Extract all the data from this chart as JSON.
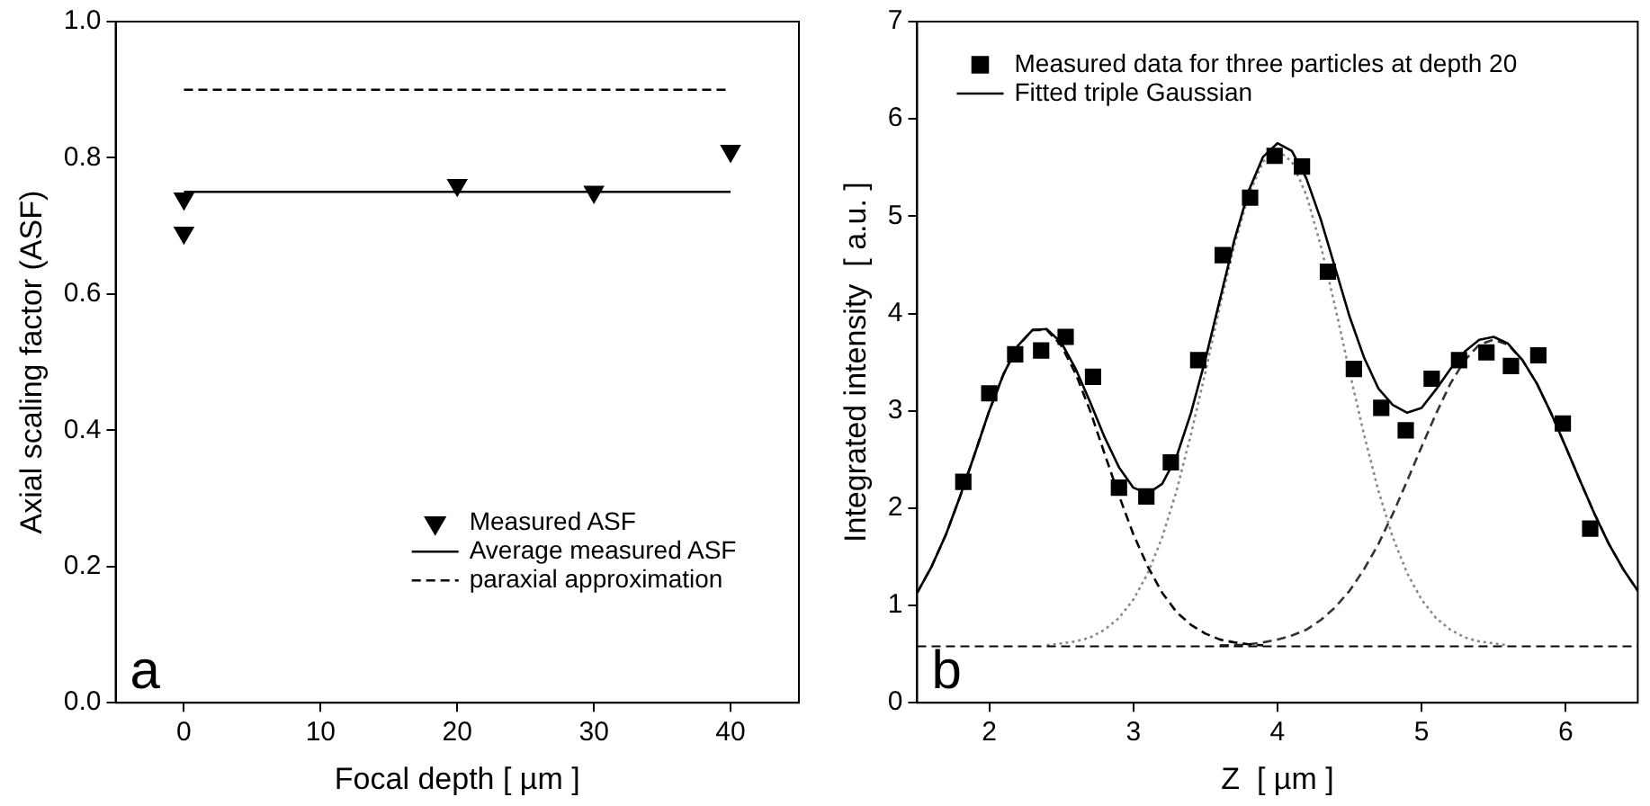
{
  "chart_data": [
    {
      "type": "scatter",
      "xlabel": "Focal depth [ µm ]",
      "ylabel": "Axial scaling factor (ASF)",
      "xlim": [
        -5,
        45
      ],
      "xticks": [
        0,
        10,
        20,
        30,
        40
      ],
      "ylim": [
        0,
        1
      ],
      "yticks": [
        {
          "value": 0,
          "label": "0.0"
        },
        {
          "value": 0.2,
          "label": "0.2"
        },
        {
          "value": 0.4,
          "label": "0.4"
        },
        {
          "value": 0.6,
          "label": "0.6"
        },
        {
          "value": 0.8,
          "label": "0.8"
        },
        {
          "value": 1,
          "label": "1.0"
        }
      ],
      "legend": "bottom right",
      "annotations": [
        "a"
      ],
      "series": [
        {
          "name": "Measured ASF",
          "type": "scatter",
          "marker": "triangle",
          "color": "#000000",
          "x": [
            0,
            0,
            20,
            30,
            40
          ],
          "values": [
            0.74,
            0.69,
            0.76,
            0.75,
            0.81
          ]
        },
        {
          "name": "Average measured ASF",
          "type": "line",
          "marker": "none",
          "line_style": "solid",
          "color": "#000000",
          "x": [
            0,
            40
          ],
          "values": [
            0.75,
            0.75
          ]
        },
        {
          "name": "paraxial approximation",
          "type": "line",
          "marker": "none",
          "line_style": "dashed",
          "color": "#000000",
          "x": [
            0,
            40
          ],
          "values": [
            0.9,
            0.9
          ]
        }
      ]
    },
    {
      "type": "scatter",
      "xlabel": "Z  [ µm ]",
      "ylabel": "Integrated intensity  [ a.u. ]",
      "xlim": [
        1.5,
        6.5
      ],
      "xticks": [
        2,
        3,
        4,
        5,
        6
      ],
      "ylim": [
        0,
        7
      ],
      "yticks": [
        0,
        1,
        2,
        3,
        4,
        5,
        6,
        7
      ],
      "legend": "top left",
      "annotations": [
        "b"
      ],
      "ref_lines": [
        {
          "axis": "y",
          "value": 0.58,
          "line_style": "dashed",
          "color": "#000000"
        }
      ],
      "series": [
        {
          "name": "Measured data for three particles at depth 20",
          "type": "scatter",
          "marker": "square",
          "color": "#000000",
          "x": [
            1.82,
            2.0,
            2.18,
            2.36,
            2.53,
            2.72,
            2.9,
            3.09,
            3.26,
            3.45,
            3.62,
            3.81,
            3.98,
            4.17,
            4.35,
            4.53,
            4.72,
            4.89,
            5.07,
            5.26,
            5.45,
            5.62,
            5.81,
            5.98,
            6.17
          ],
          "values": [
            2.27,
            3.18,
            3.58,
            3.62,
            3.76,
            3.35,
            2.21,
            2.12,
            2.47,
            3.52,
            4.6,
            5.19,
            5.62,
            5.51,
            4.43,
            3.43,
            3.03,
            2.8,
            3.33,
            3.52,
            3.6,
            3.46,
            3.57,
            2.87,
            1.79
          ]
        },
        {
          "name": "Fitted triple Gaussian",
          "type": "line",
          "marker": "none",
          "line_style": "solid",
          "color": "#000000",
          "x": [
            1.5,
            1.6,
            1.7,
            1.8,
            1.9,
            2.0,
            2.1,
            2.2,
            2.3,
            2.4,
            2.5,
            2.6,
            2.7,
            2.8,
            2.9,
            3.0,
            3.1,
            3.2,
            3.3,
            3.4,
            3.5,
            3.6,
            3.7,
            3.8,
            3.9,
            4.0,
            4.1,
            4.2,
            4.3,
            4.4,
            4.5,
            4.6,
            4.7,
            4.8,
            4.9,
            5.0,
            5.1,
            5.2,
            5.3,
            5.4,
            5.5,
            5.6,
            5.7,
            5.8,
            5.9,
            6.0,
            6.1,
            6.2,
            6.3,
            6.4,
            6.5
          ],
          "values": [
            1.13,
            1.4,
            1.73,
            2.13,
            2.56,
            3.0,
            3.38,
            3.67,
            3.83,
            3.84,
            3.7,
            3.43,
            3.09,
            2.73,
            2.42,
            2.21,
            2.15,
            2.25,
            2.53,
            2.98,
            3.53,
            4.14,
            4.75,
            5.26,
            5.61,
            5.75,
            5.67,
            5.39,
            4.97,
            4.47,
            3.97,
            3.55,
            3.23,
            3.06,
            2.98,
            3.03,
            3.22,
            3.43,
            3.61,
            3.73,
            3.76,
            3.69,
            3.52,
            3.28,
            2.97,
            2.63,
            2.28,
            1.94,
            1.63,
            1.37,
            1.15
          ]
        },
        {
          "type": "line",
          "marker": "none",
          "line_style": "dashed",
          "color": "#000000",
          "x": [
            1.5,
            1.6,
            1.7,
            1.8,
            1.9,
            2.0,
            2.1,
            2.2,
            2.3,
            2.4,
            2.5,
            2.6,
            2.7,
            2.8,
            2.9,
            3.0,
            3.1,
            3.2,
            3.3,
            3.4,
            3.5,
            3.6,
            3.7,
            3.8,
            3.9
          ],
          "values": [
            1.13,
            1.4,
            1.73,
            2.13,
            2.56,
            3.0,
            3.38,
            3.67,
            3.83,
            3.83,
            3.67,
            3.38,
            3.0,
            2.56,
            2.13,
            1.73,
            1.4,
            1.13,
            0.93,
            0.8,
            0.71,
            0.65,
            0.62,
            0.6,
            0.59
          ]
        },
        {
          "type": "line",
          "marker": "none",
          "line_style": "dotted",
          "color": "#888888",
          "x": [
            2.4,
            2.5,
            2.6,
            2.7,
            2.8,
            2.9,
            3.0,
            3.1,
            3.2,
            3.3,
            3.4,
            3.5,
            3.6,
            3.7,
            3.8,
            3.9,
            4.0,
            4.1,
            4.2,
            4.3,
            4.4,
            4.5,
            4.6,
            4.7,
            4.8,
            4.9,
            5.0,
            5.1,
            5.2,
            5.3,
            5.4,
            5.5,
            5.6
          ],
          "values": [
            0.59,
            0.61,
            0.63,
            0.67,
            0.75,
            0.87,
            1.06,
            1.33,
            1.7,
            2.18,
            2.76,
            3.4,
            4.07,
            4.7,
            5.22,
            5.56,
            5.68,
            5.56,
            5.22,
            4.7,
            4.07,
            3.4,
            2.76,
            2.18,
            1.7,
            1.33,
            1.06,
            0.87,
            0.75,
            0.67,
            0.63,
            0.61,
            0.59
          ]
        },
        {
          "type": "line",
          "marker": "none",
          "line_style": "dashed",
          "color": "#333333",
          "x": [
            3.6,
            3.7,
            3.8,
            3.9,
            4.0,
            4.1,
            4.2,
            4.3,
            4.4,
            4.5,
            4.6,
            4.7,
            4.8,
            4.9,
            5.0,
            5.1,
            5.2,
            5.3,
            5.4,
            5.5,
            5.6,
            5.7,
            5.8,
            5.9,
            6.0,
            6.1,
            6.2,
            6.3,
            6.4,
            6.5
          ],
          "values": [
            0.59,
            0.59,
            0.6,
            0.62,
            0.65,
            0.69,
            0.75,
            0.85,
            0.98,
            1.15,
            1.37,
            1.63,
            1.94,
            2.28,
            2.63,
            2.97,
            3.28,
            3.52,
            3.68,
            3.73,
            3.68,
            3.52,
            3.28,
            2.97,
            2.63,
            2.28,
            1.94,
            1.63,
            1.37,
            1.15
          ]
        }
      ]
    }
  ]
}
